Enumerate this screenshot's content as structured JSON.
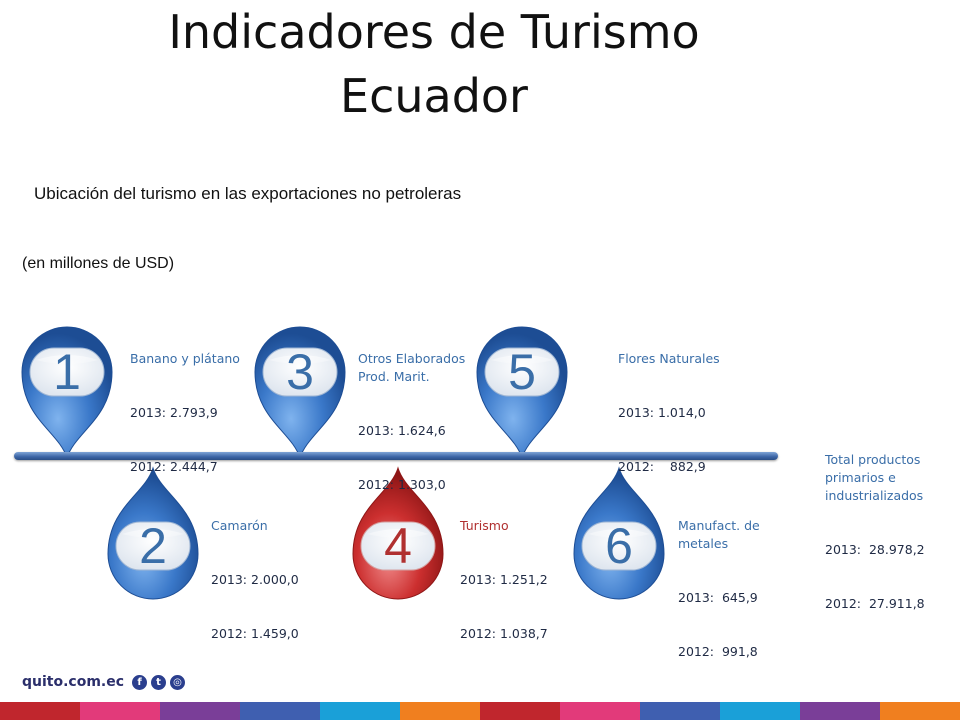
{
  "title_line1": "Indicadores de Turismo",
  "title_line2": "Ecuador",
  "subtitle": "Ubicación del turismo en las exportaciones no petroleras",
  "unit": "(en millones de USD)",
  "items": [
    {
      "rank": "1",
      "name": "Banano y plátano",
      "line2013": "2013: 2.793,9",
      "line2012": "2012: 2.444,7"
    },
    {
      "rank": "2",
      "name": "Camarón",
      "line2013": "2013: 2.000,0",
      "line2012": "2012: 1.459,0"
    },
    {
      "rank": "3",
      "name": "Otros Elaborados\nProd. Marit.",
      "line2013": "2013: 1.624,6",
      "line2012": "2012: 1.303,0"
    },
    {
      "rank": "4",
      "name": "Turismo",
      "line2013": "2013: 1.251,2",
      "line2012": "2012: 1.038,7",
      "highlight": true
    },
    {
      "rank": "5",
      "name": "Flores Naturales",
      "line2013": "2013: 1.014,0",
      "line2012": "2012:    882,9"
    },
    {
      "rank": "6",
      "name": "Manufact. de\nmetales",
      "line2013": "2013:  645,9",
      "line2012": "2012:  991,8"
    }
  ],
  "total": {
    "name": "Total productos\nprimarios e\nindustrializados",
    "line2013": "2013:  28.978,2",
    "line2012": "2012:  27.911,8"
  },
  "footer": {
    "site": "quito.com.ec",
    "social_icons": [
      "facebook-icon",
      "twitter-icon",
      "instagram-icon"
    ]
  },
  "colors": {
    "drop_blue": "#3a78c9",
    "drop_red": "#cc2f2f",
    "stripe": [
      "#c0262d",
      "#e23a7a",
      "#7a3e98",
      "#3f5fb0",
      "#1aa0d8",
      "#f07f1f",
      "#c0262d",
      "#e23a7a",
      "#3f5fb0",
      "#1aa0d8",
      "#7a3e98",
      "#f07f1f"
    ]
  }
}
